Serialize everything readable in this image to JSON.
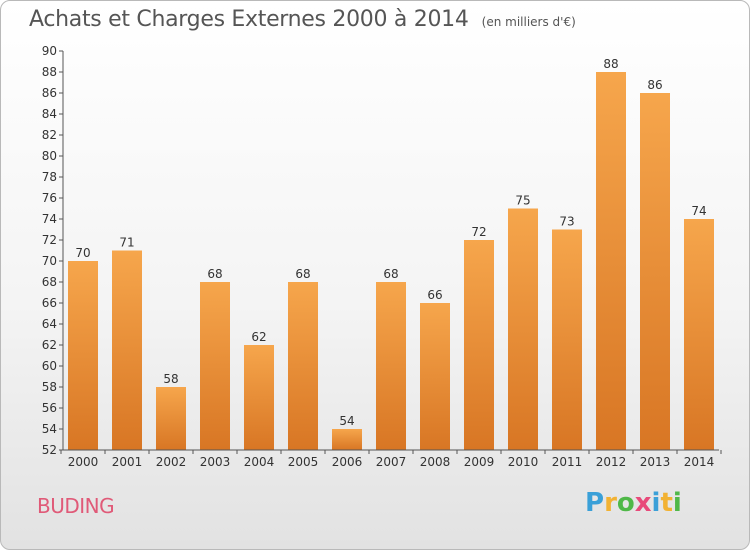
{
  "title": "Achats et Charges Externes 2000 à 2014",
  "subtitle": "(en milliers d'€)",
  "commune": "BUDING",
  "brand": {
    "letters": [
      "P",
      "r",
      "o",
      "x",
      "i",
      "t",
      "i"
    ],
    "colors": [
      "#3aa0d8",
      "#f2b233",
      "#4fb848",
      "#e84a7a",
      "#3aa0d8",
      "#f2b233",
      "#4fb848"
    ]
  },
  "colors": {
    "bar_top": "#f6a64c",
    "bar_bottom": "#d87624",
    "axis": "#555555",
    "grid": "#dddddd"
  },
  "chart_data": {
    "type": "bar",
    "title": "Achats et Charges Externes 2000 à 2014",
    "subtitle": "(en milliers d'€)",
    "categories": [
      "2000",
      "2001",
      "2002",
      "2003",
      "2004",
      "2005",
      "2006",
      "2007",
      "2008",
      "2009",
      "2010",
      "2011",
      "2012",
      "2013",
      "2014"
    ],
    "values": [
      70,
      71,
      58,
      68,
      62,
      68,
      54,
      68,
      66,
      72,
      75,
      73,
      88,
      86,
      74
    ],
    "ylim": [
      52,
      90
    ],
    "yticks": [
      52,
      54,
      56,
      58,
      60,
      62,
      64,
      66,
      68,
      70,
      72,
      74,
      76,
      78,
      80,
      82,
      84,
      86,
      88,
      90
    ],
    "xlabel": "",
    "ylabel": "",
    "data_labels": true,
    "grid": false
  }
}
